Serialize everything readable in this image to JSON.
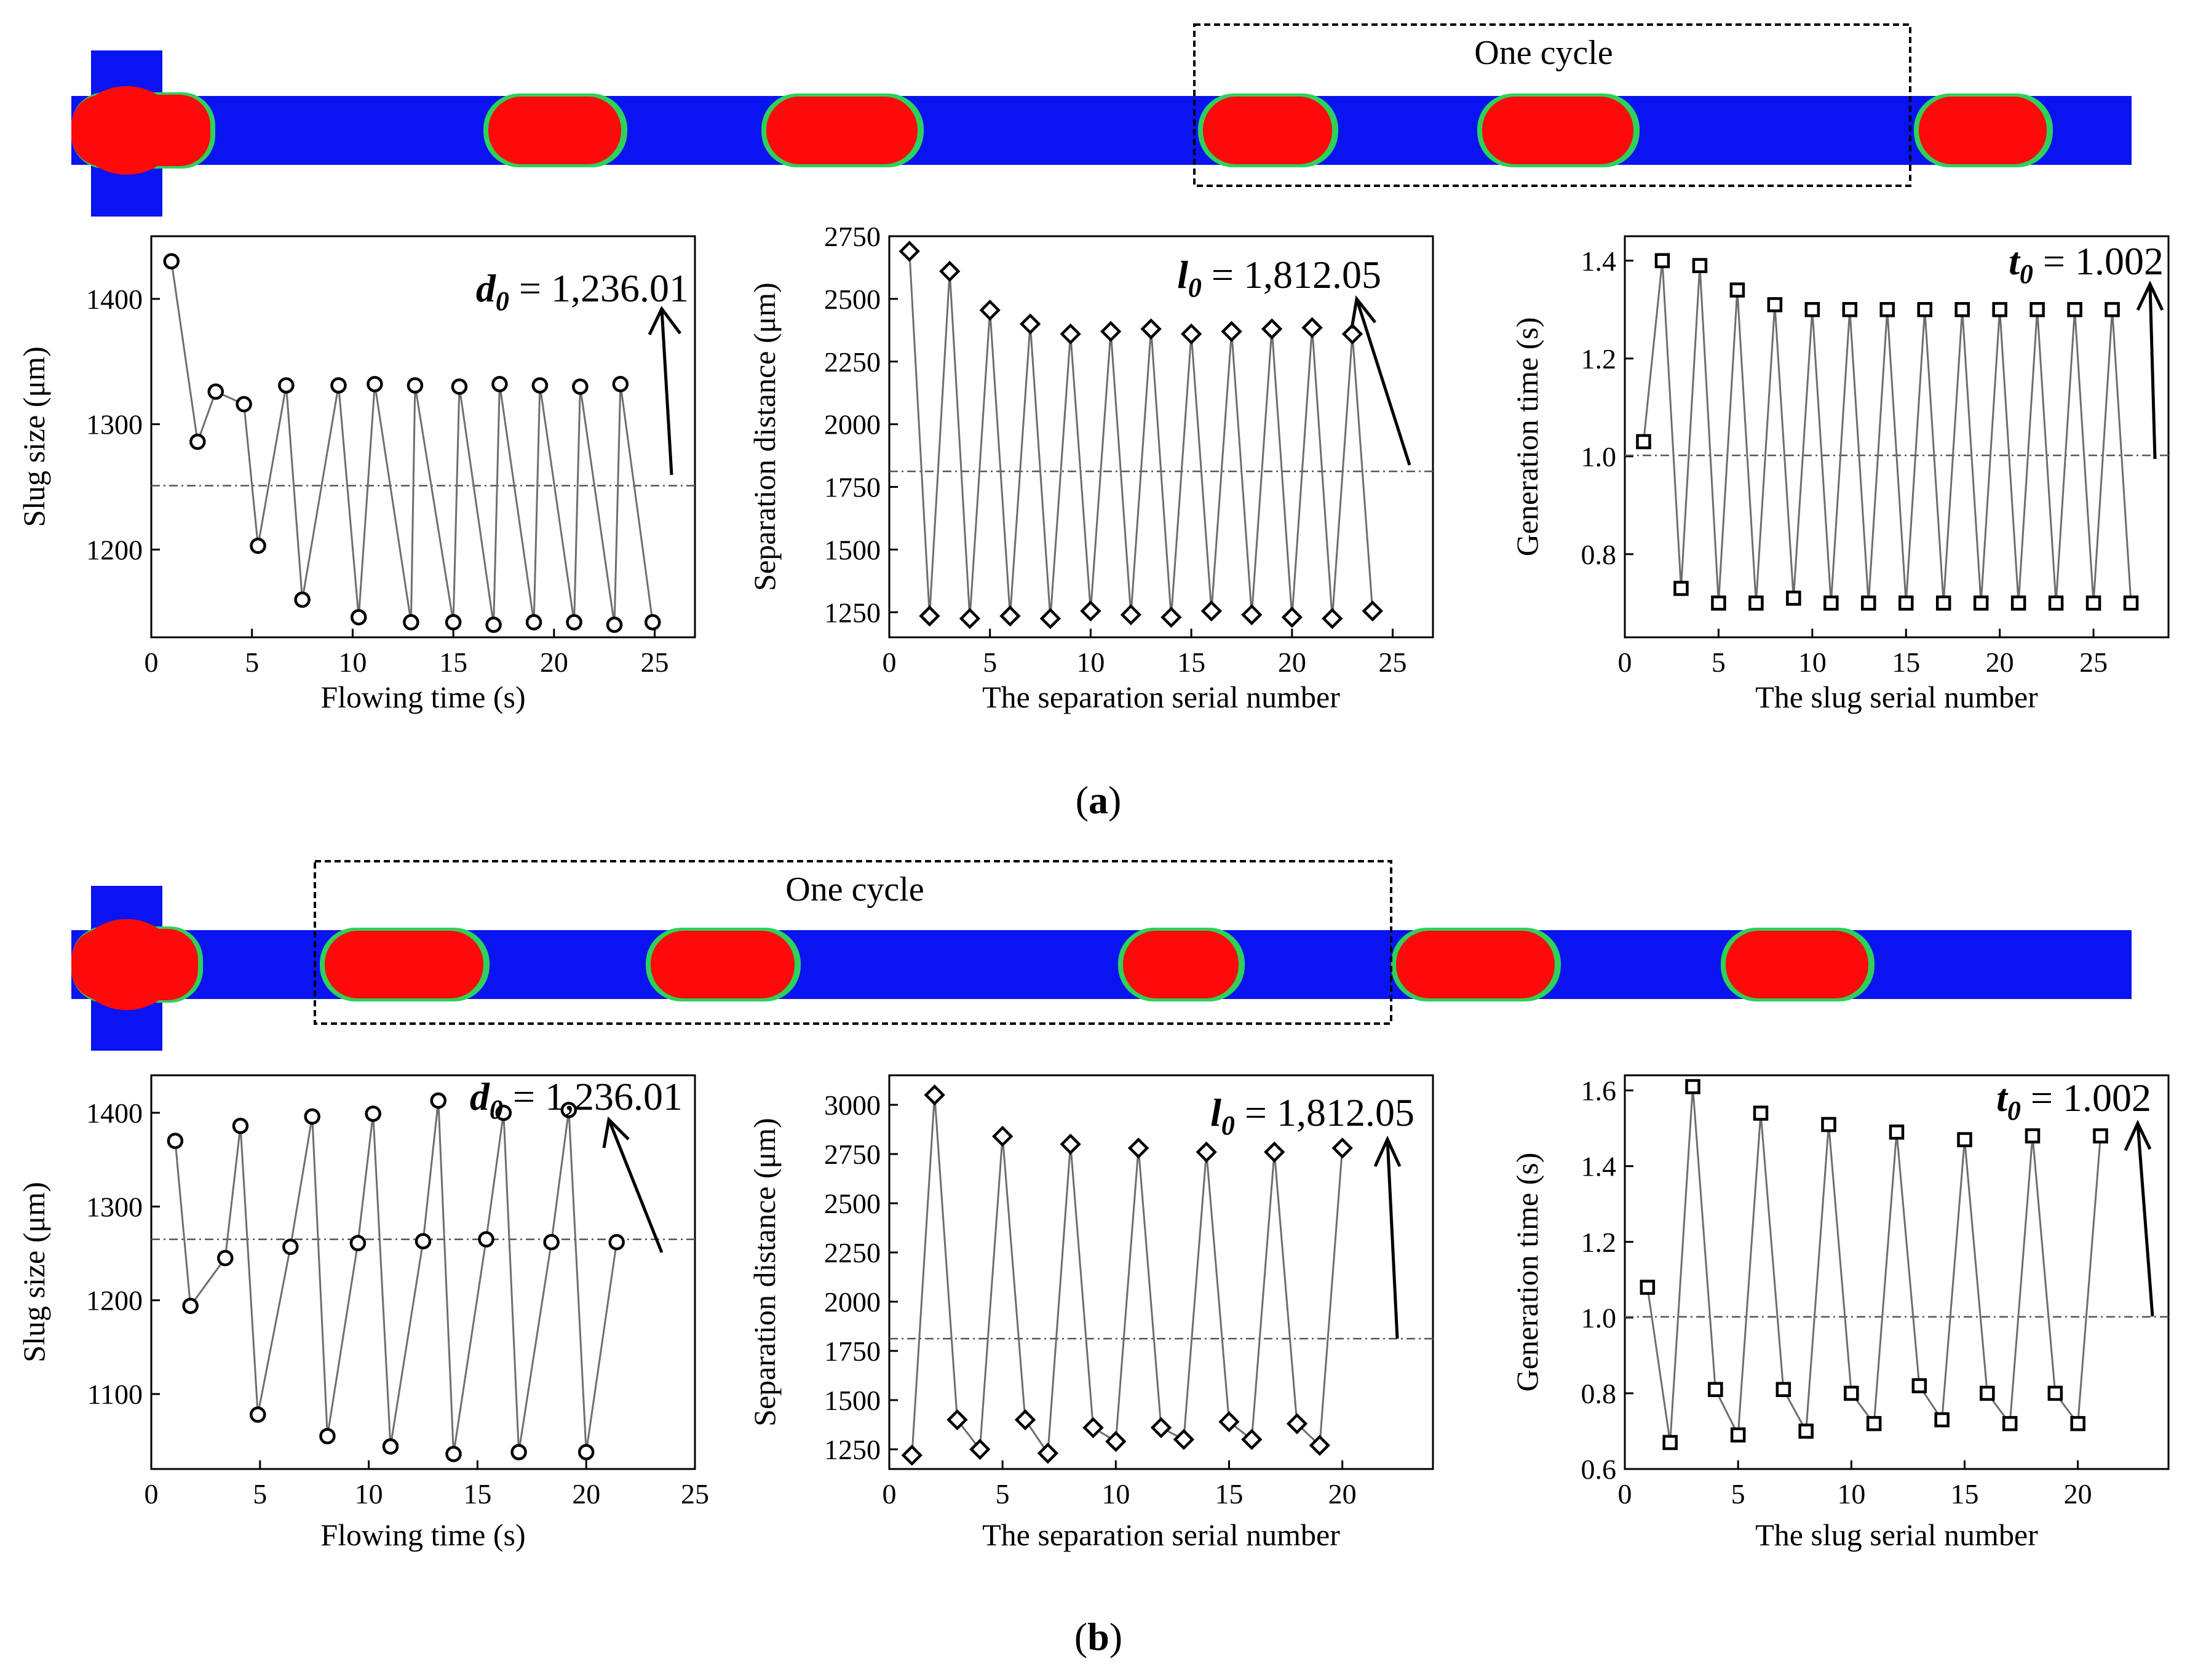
{
  "colors": {
    "channel": "#0a14f0",
    "slug": "#ff0a0a",
    "rim_green": "#2ed15a",
    "rim_cyan": "#1ec8e6",
    "marker_stroke": "#000000",
    "connect_line": "#6e6e6e"
  },
  "panels": [
    {
      "caption": "(a)",
      "caption_letter": "a",
      "cycle_label": "One cycle",
      "charts": [
        {
          "type": "line",
          "marker": "circle",
          "xlabel": "Flowing time (s)",
          "ylabel": "Slug size (μm)",
          "xlim": [
            0,
            27
          ],
          "ylim": [
            1130,
            1450
          ],
          "xticks": [
            0,
            5,
            10,
            15,
            20,
            25
          ],
          "yticks": [
            1200,
            1300,
            1400
          ],
          "ref_value": 1251,
          "annotation": {
            "symbol": "d",
            "sub": "0",
            "text": " = 1,236.01"
          },
          "x": [
            1.0,
            2.3,
            3.2,
            4.6,
            5.3,
            6.7,
            7.5,
            9.3,
            10.3,
            11.1,
            12.9,
            13.1,
            15.0,
            15.3,
            17.0,
            17.3,
            19.0,
            19.3,
            21.0,
            21.3,
            23.0,
            23.3,
            24.9
          ],
          "y": [
            1430,
            1286,
            1326,
            1316,
            1203,
            1331,
            1160,
            1331,
            1146,
            1332,
            1142,
            1331,
            1142,
            1330,
            1140,
            1332,
            1142,
            1331,
            1142,
            1330,
            1140,
            1332,
            1142
          ]
        },
        {
          "type": "line",
          "marker": "diamond",
          "xlabel": "The separation serial number",
          "ylabel": "Separation  distance (μm)",
          "xlim": [
            0,
            27
          ],
          "ylim": [
            1150,
            2750
          ],
          "xticks": [
            0,
            5,
            10,
            15,
            20,
            25
          ],
          "yticks": [
            1250,
            1500,
            1750,
            2000,
            2250,
            2500,
            2750
          ],
          "ref_value": 1812,
          "annotation": {
            "symbol": "l",
            "sub": "0",
            "text": " = 1,812.05"
          },
          "x": [
            1,
            2,
            3,
            4,
            5,
            6,
            7,
            8,
            9,
            10,
            11,
            12,
            13,
            14,
            15,
            16,
            17,
            18,
            19,
            20,
            21,
            22,
            23,
            24
          ],
          "y": [
            2690,
            1235,
            2610,
            1225,
            2455,
            1235,
            2400,
            1225,
            2360,
            1255,
            2370,
            1240,
            2380,
            1230,
            2360,
            1255,
            2370,
            1240,
            2380,
            1230,
            2385,
            1225,
            2360,
            1255
          ]
        },
        {
          "type": "line",
          "marker": "square",
          "xlabel": "The slug serial number",
          "ylabel": "Generation time (s)",
          "xlim": [
            0,
            29
          ],
          "ylim": [
            0.63,
            1.45
          ],
          "xticks": [
            0,
            5,
            10,
            15,
            20,
            25
          ],
          "yticks": [
            0.8,
            1.0,
            1.2,
            1.4
          ],
          "ytick_labels": [
            "0.8",
            "1.0",
            "1.2",
            "1.4"
          ],
          "ref_value": 1.002,
          "annotation": {
            "symbol": "t",
            "sub": "0",
            "text": " = 1.002"
          },
          "x": [
            1,
            2,
            3,
            4,
            5,
            6,
            7,
            8,
            9,
            10,
            11,
            12,
            13,
            14,
            15,
            16,
            17,
            18,
            19,
            20,
            21,
            22,
            23,
            24,
            25,
            26,
            27
          ],
          "y": [
            1.03,
            1.4,
            0.73,
            1.39,
            0.7,
            1.34,
            0.7,
            1.31,
            0.71,
            1.3,
            0.7,
            1.3,
            0.7,
            1.3,
            0.7,
            1.3,
            0.7,
            1.3,
            0.7,
            1.3,
            0.7,
            1.3,
            0.7,
            1.3,
            0.7,
            1.3,
            0.7
          ]
        }
      ]
    },
    {
      "caption": "(b)",
      "caption_letter": "b",
      "cycle_label": "One cycle",
      "charts": [
        {
          "type": "line",
          "marker": "circle",
          "xlabel": "Flowing time (s)",
          "ylabel": "Slug size (μm)",
          "xlim": [
            0,
            25
          ],
          "ylim": [
            1020,
            1440
          ],
          "xticks": [
            0,
            5,
            10,
            15,
            20,
            25
          ],
          "yticks": [
            1100,
            1200,
            1300,
            1400
          ],
          "ref_value": 1265,
          "annotation": {
            "symbol": "d",
            "sub": "0",
            "text": " = 1,236.01"
          },
          "x": [
            1.1,
            1.8,
            3.4,
            4.1,
            4.9,
            6.4,
            7.4,
            8.1,
            9.5,
            10.2,
            11.0,
            12.5,
            13.2,
            13.9,
            15.4,
            16.2,
            16.9,
            18.4,
            19.2,
            20.0,
            21.4
          ],
          "y": [
            1370,
            1194,
            1245,
            1386,
            1078,
            1257,
            1396,
            1055,
            1261,
            1399,
            1044,
            1263,
            1413,
            1036,
            1265,
            1400,
            1038,
            1262,
            1403,
            1038,
            1262
          ]
        },
        {
          "type": "line",
          "marker": "diamond",
          "xlabel": "The separation serial number",
          "ylabel": "Separation  distance (μm)",
          "xlim": [
            0,
            24
          ],
          "ylim": [
            1150,
            3150
          ],
          "xticks": [
            0,
            5,
            10,
            15,
            20
          ],
          "yticks": [
            1250,
            1500,
            1750,
            2000,
            2250,
            2500,
            2750,
            3000
          ],
          "ref_value": 1812,
          "annotation": {
            "symbol": "l",
            "sub": "0",
            "text": " = 1,812.05"
          },
          "x": [
            1,
            2,
            3,
            4,
            5,
            6,
            7,
            8,
            9,
            10,
            11,
            12,
            13,
            14,
            15,
            16,
            17,
            18,
            19,
            20
          ],
          "y": [
            1220,
            3050,
            1400,
            1250,
            2840,
            1400,
            1230,
            2800,
            1360,
            1290,
            2780,
            1360,
            1300,
            2760,
            1390,
            1300,
            2760,
            1380,
            1270,
            2780
          ]
        },
        {
          "type": "line",
          "marker": "square",
          "xlabel": "The slug serial number",
          "ylabel": "Generation time (s)",
          "xlim": [
            0,
            24
          ],
          "ylim": [
            0.6,
            1.64
          ],
          "xticks": [
            0,
            5,
            10,
            15,
            20
          ],
          "yticks": [
            0.6,
            0.8,
            1.0,
            1.2,
            1.4,
            1.6
          ],
          "ytick_labels": [
            "0.6",
            "0.8",
            "1.0",
            "1.2",
            "1.4",
            "1.6"
          ],
          "ref_value": 1.002,
          "annotation": {
            "symbol": "t",
            "sub": "0",
            "text": " = 1.002"
          },
          "x": [
            1,
            2,
            3,
            4,
            5,
            6,
            7,
            8,
            9,
            10,
            11,
            12,
            13,
            14,
            15,
            16,
            17,
            18,
            19,
            20,
            21
          ],
          "y": [
            1.08,
            0.67,
            1.61,
            0.81,
            0.69,
            1.54,
            0.81,
            0.7,
            1.51,
            0.8,
            0.72,
            1.49,
            0.82,
            0.73,
            1.47,
            0.8,
            0.72,
            1.48,
            0.8,
            0.72,
            1.48
          ]
        }
      ]
    }
  ]
}
